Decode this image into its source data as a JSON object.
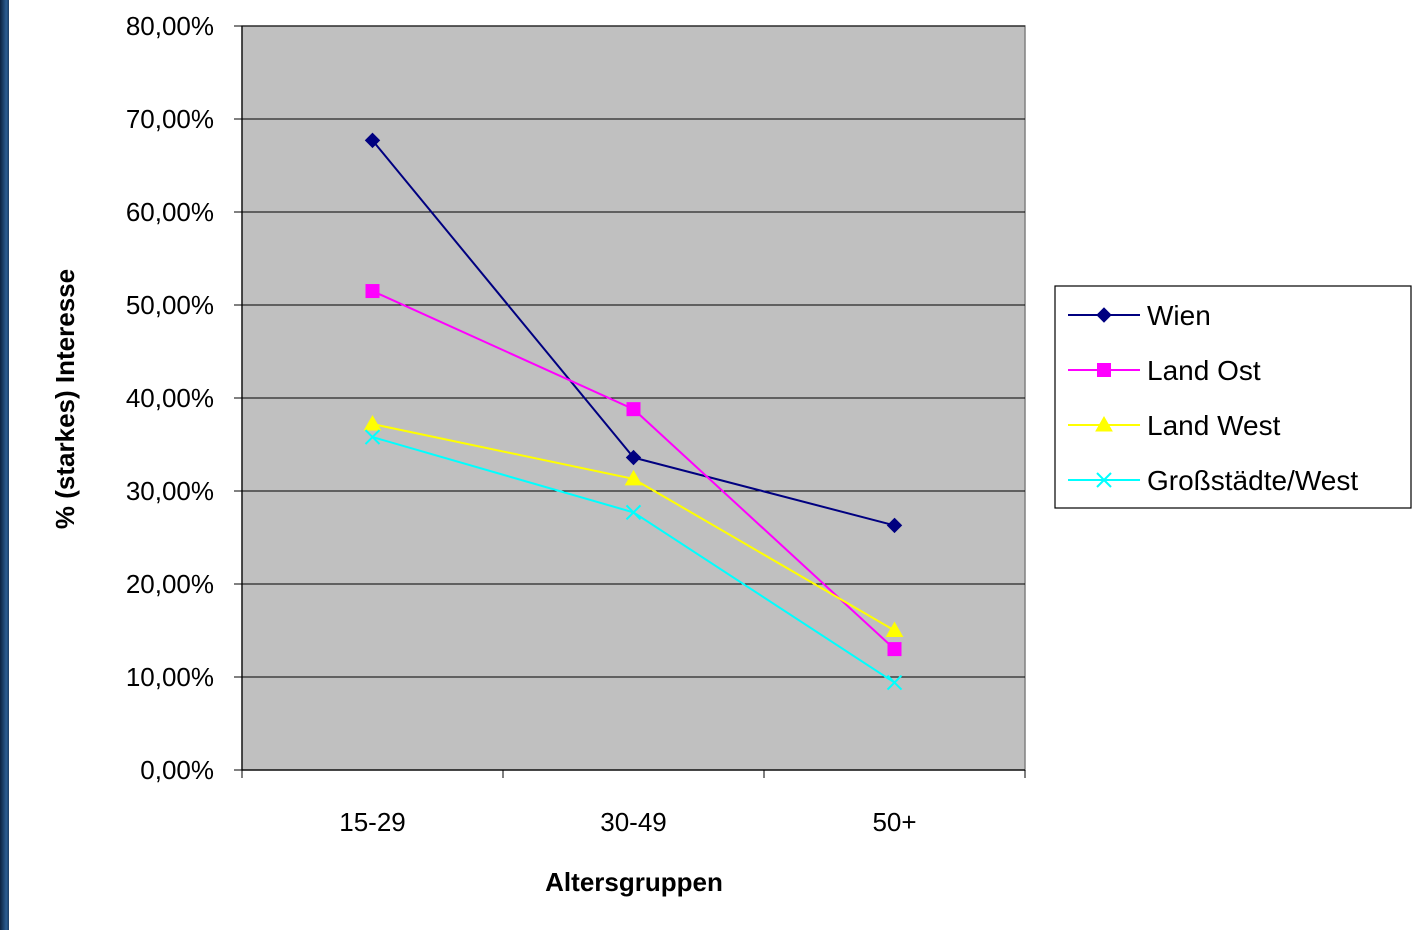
{
  "chart_data": {
    "type": "line",
    "title": "",
    "xlabel": "Altersgruppen",
    "ylabel": "% (starkes) Interesse",
    "categories": [
      "15-29",
      "30-49",
      "50+"
    ],
    "ylim": [
      0,
      80
    ],
    "yticks": [
      0,
      10,
      20,
      30,
      40,
      50,
      60,
      70,
      80
    ],
    "ytick_labels": [
      "0,00%",
      "10,00%",
      "20,00%",
      "30,00%",
      "40,00%",
      "50,00%",
      "60,00%",
      "70,00%",
      "80,00%"
    ],
    "grid": true,
    "plot_background": "#c0c0c0",
    "legend_position": "right",
    "series": [
      {
        "name": "Wien",
        "color": "#000080",
        "marker": "diamond",
        "values": [
          67.7,
          33.6,
          26.3
        ]
      },
      {
        "name": "Land Ost",
        "color": "#ff00ff",
        "marker": "square",
        "values": [
          51.5,
          38.8,
          13.0
        ]
      },
      {
        "name": "Land West",
        "color": "#ffff00",
        "marker": "triangle",
        "values": [
          37.2,
          31.3,
          15.0
        ]
      },
      {
        "name": "Großstädte/West",
        "color": "#00ffff",
        "marker": "x",
        "values": [
          35.8,
          27.7,
          9.4
        ]
      }
    ]
  }
}
